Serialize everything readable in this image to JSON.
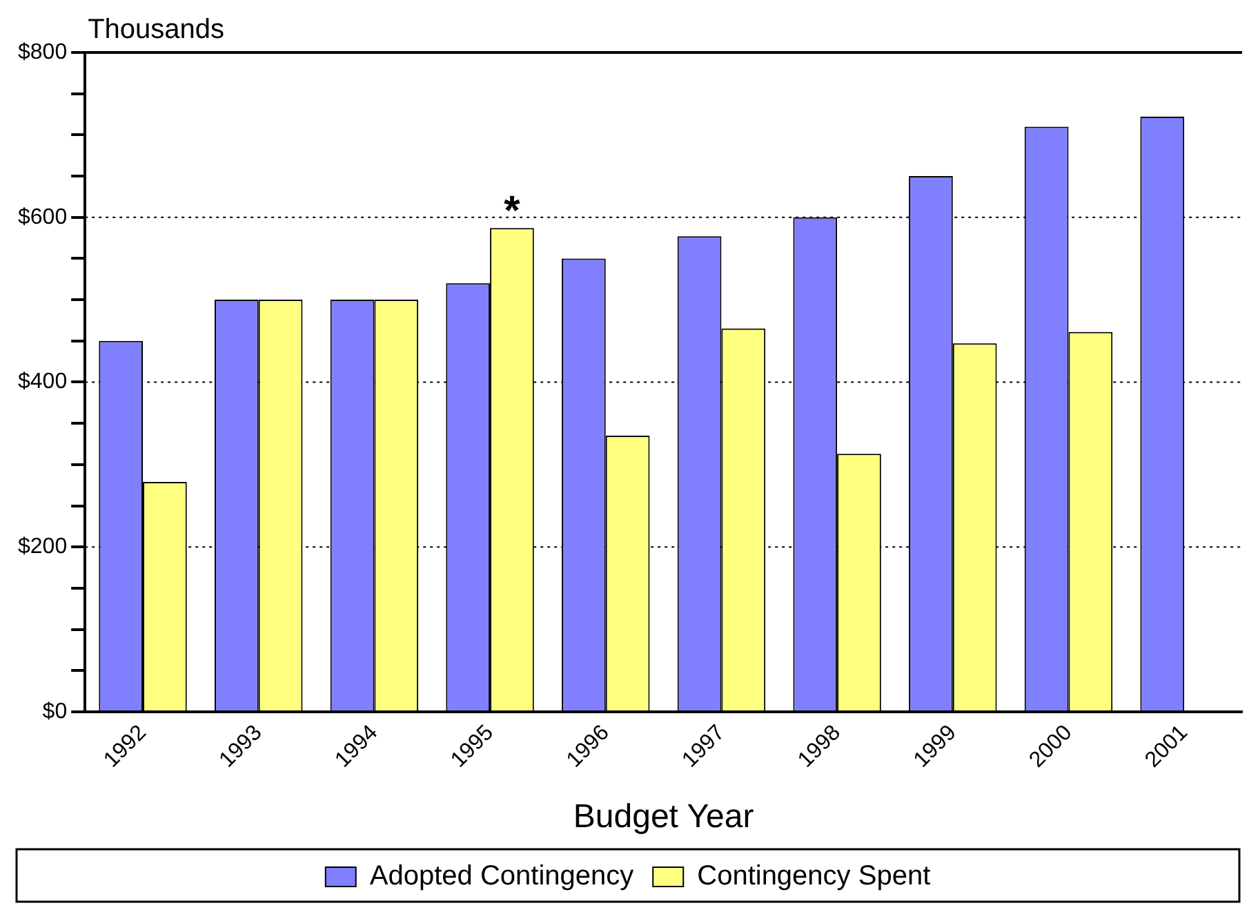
{
  "chart_data": {
    "type": "bar",
    "ylabel": "Thousands",
    "xlabel": "Budget Year",
    "categories": [
      "1992",
      "1993",
      "1994",
      "1995",
      "1996",
      "1997",
      "1998",
      "1999",
      "2000",
      "2001"
    ],
    "series": [
      {
        "name": "Adopted Contingency",
        "color": "#8080ff",
        "values": [
          450,
          500,
          500,
          520,
          550,
          577,
          600,
          650,
          710,
          722
        ]
      },
      {
        "name": "Contingency Spent",
        "color": "#ffff80",
        "values": [
          279,
          500,
          500,
          587,
          335,
          465,
          313,
          447,
          461,
          null
        ]
      }
    ],
    "ylim": [
      0,
      800
    ],
    "yticks": [
      {
        "value": 0,
        "label": "$0"
      },
      {
        "value": 50,
        "label": null
      },
      {
        "value": 100,
        "label": null
      },
      {
        "value": 150,
        "label": null
      },
      {
        "value": 200,
        "label": "$200"
      },
      {
        "value": 250,
        "label": null
      },
      {
        "value": 300,
        "label": null
      },
      {
        "value": 350,
        "label": null
      },
      {
        "value": 400,
        "label": "$400"
      },
      {
        "value": 450,
        "label": null
      },
      {
        "value": 500,
        "label": null
      },
      {
        "value": 550,
        "label": null
      },
      {
        "value": 600,
        "label": "$600"
      },
      {
        "value": 650,
        "label": null
      },
      {
        "value": 700,
        "label": null
      },
      {
        "value": 750,
        "label": null
      },
      {
        "value": 800,
        "label": "$800"
      }
    ],
    "grid": "y",
    "legend": "bottom",
    "annotations": [
      {
        "text": "*",
        "x": "1995",
        "y": 587
      }
    ]
  }
}
